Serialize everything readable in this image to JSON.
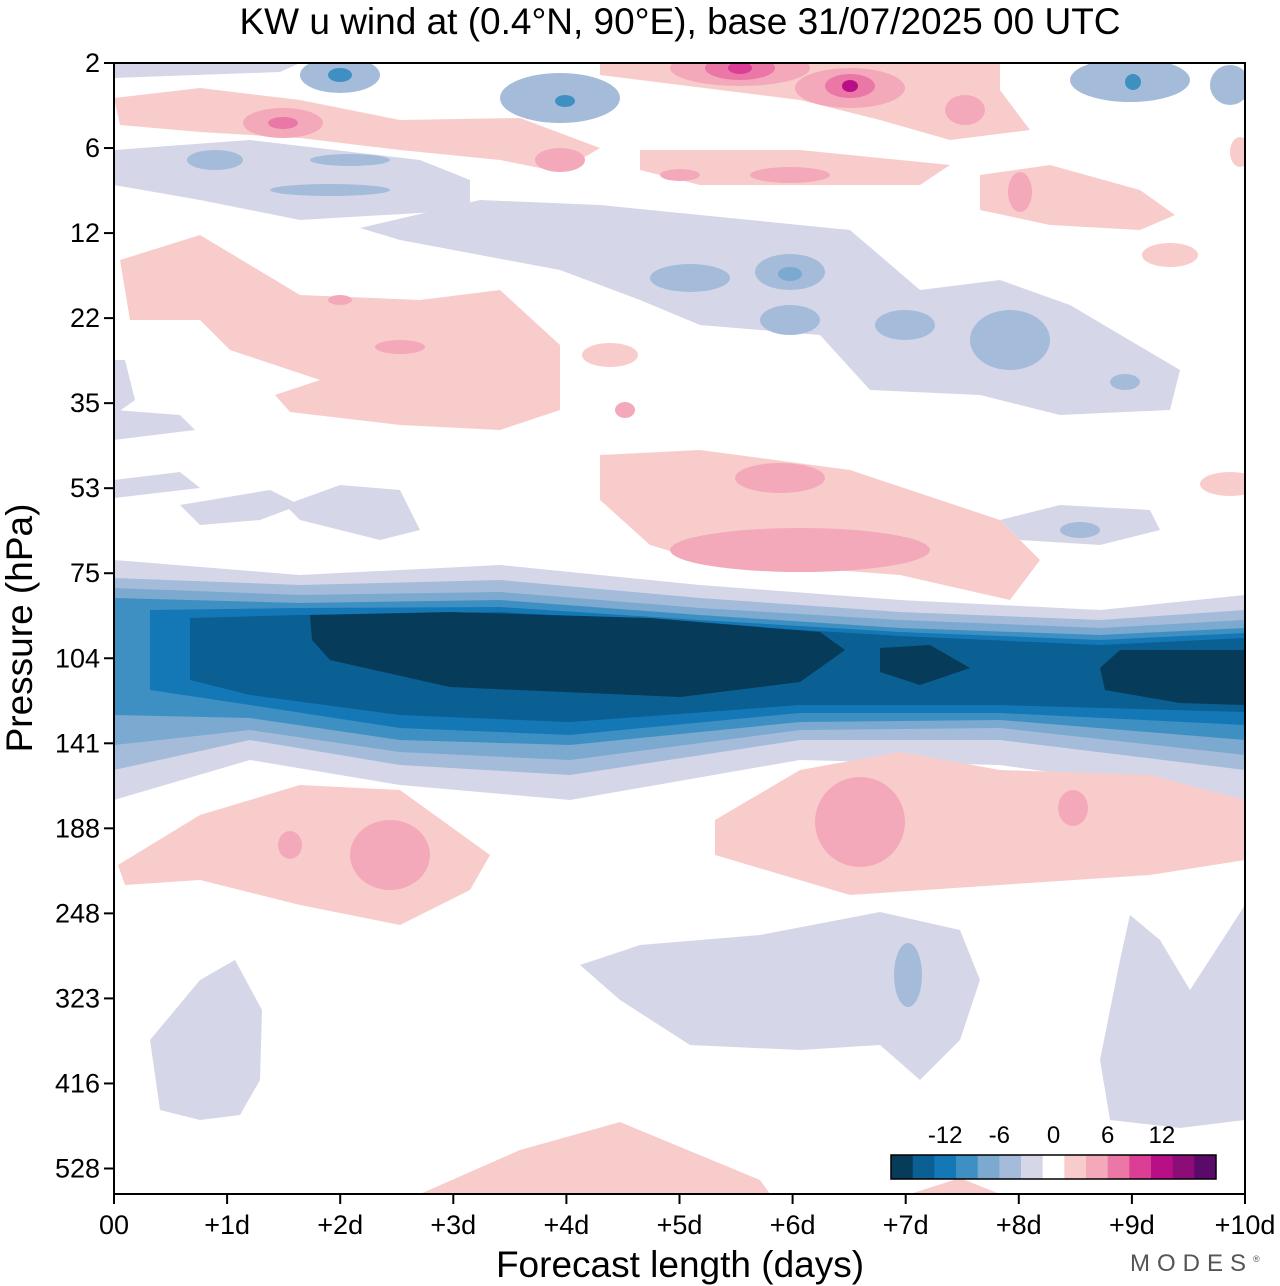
{
  "chart_data": {
    "type": "heatmap",
    "title": "KW u wind at (0.4°N, 90°E),  base 31/07/2025  00 UTC",
    "xlabel": "Forecast length (days)",
    "ylabel": "Pressure (hPa)",
    "x_ticks": [
      "00",
      "+1d",
      "+2d",
      "+3d",
      "+4d",
      "+5d",
      "+6d",
      "+7d",
      "+8d",
      "+9d",
      "+10d"
    ],
    "xlim": [
      0,
      10
    ],
    "y_ticks": [
      2,
      6,
      12,
      22,
      35,
      53,
      75,
      104,
      141,
      188,
      248,
      323,
      416,
      528
    ],
    "colorbar": {
      "tick_labels": [
        "-12",
        "-6",
        "0",
        "6",
        "12"
      ],
      "colors": [
        "#063b5a",
        "#0a5f93",
        "#1478b6",
        "#3f90c2",
        "#7ba9cf",
        "#a5bbda",
        "#d5d7e8",
        "#ffffff",
        "#f9cccc",
        "#f4a9bb",
        "#ea77a6",
        "#dc3e95",
        "#b80f86",
        "#8c0c78",
        "#5b0a6a"
      ]
    },
    "features": [
      {
        "kind": "easterly_jet",
        "p_top": 80,
        "p_bottom": 150,
        "core_min": -14,
        "days": [
          0,
          10
        ]
      },
      {
        "kind": "westerly_band",
        "p": 65,
        "days": [
          4.5,
          8
        ],
        "max": 5
      },
      {
        "kind": "westerly_band",
        "p": 195,
        "days": [
          0.5,
          3.5
        ],
        "max": 5
      },
      {
        "kind": "westerly_band",
        "p": 185,
        "days": [
          5.5,
          10
        ],
        "max": 5
      },
      {
        "kind": "westerly_band",
        "p": 25,
        "days": [
          1,
          5
        ],
        "max": 3
      },
      {
        "kind": "westerly_band",
        "p": 3,
        "days": [
          4.5,
          7
        ],
        "max": 12
      }
    ]
  },
  "brand": {
    "name": "MODES",
    "mark": "®"
  }
}
